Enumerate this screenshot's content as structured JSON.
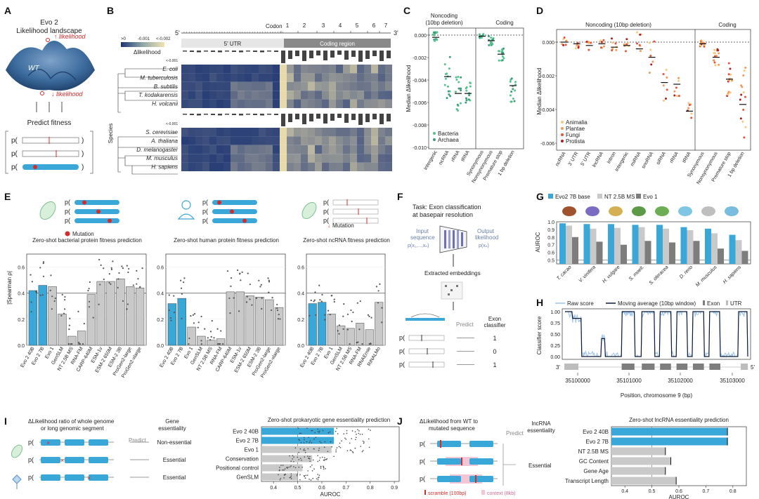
{
  "colors": {
    "blue": "#39a7d8",
    "gray": "#c9c9c9",
    "darkgray": "#7d7d7d",
    "red": "#d92a2a",
    "navy": "#1d3573",
    "cream": "#f2e3b0",
    "green": "#55c28b",
    "teal": "#3e9d7a",
    "animalia": "#f7c77a",
    "plantae": "#ef9a5a",
    "fungi": "#e0553b",
    "protista": "#b21d1d"
  },
  "panelA": {
    "letter": "A",
    "title_line1": "Evo 2",
    "title_line2": "Likelihood landscape",
    "high_label": "likelihood",
    "low_label": "likelihood",
    "wt_label": "WT",
    "predict_label": "Predict fitness",
    "p_labels": [
      "p(",
      "p(",
      "p("
    ],
    "close_paren": ")"
  },
  "panelB": {
    "letter": "B",
    "codon_label": "Codon",
    "five_prime": "5'",
    "three_prime": "3'",
    "codon_numbers": [
      "1",
      "2",
      "3",
      "4",
      "5",
      "6",
      "7"
    ],
    "utr_label": "5' UTR",
    "coding_label": "Coding region",
    "cbar_ticks": [
      ">0",
      "-0.001",
      "<-0.002"
    ],
    "cbar_label": "Δlikelihood",
    "small_tick": "<-0.001",
    "species_axis": "Species",
    "prok_species": [
      "E. coli",
      "M. tuberculosis",
      "B. subtilis",
      "T. kodakarensis",
      "H. volcanii"
    ],
    "euk_species": [
      "S. cerevisiae",
      "A. thaliana",
      "D. melanogaster",
      "M. musculus",
      "H. sapiens"
    ]
  },
  "panelC": {
    "letter": "C",
    "group1": "Noncoding",
    "group1b": "(10bp deletion)",
    "group2": "Coding",
    "ylabel": "Median Δlikelihood",
    "yticks": [
      "0.000",
      "-0.002",
      "-0.004",
      "-0.006",
      "-0.008",
      "-0.010"
    ],
    "categories": [
      "Intergenic",
      "ncRNA",
      "rRNA",
      "tRNA",
      "Synonymous",
      "Nonsynonymous",
      "Premature stop",
      "1 bp deletion"
    ],
    "legend": [
      "Bacteria",
      "Archaea"
    ]
  },
  "panelD": {
    "letter": "D",
    "group1": "Noncoding (10bp deletion)",
    "group2": "Coding",
    "ylabel": "Median Δlikelihood",
    "yticks": [
      "0.000",
      "-0.002",
      "-0.004",
      "-0.006"
    ],
    "categories": [
      "ncRNA",
      "3' UTR",
      "5' UTR",
      "lncRNA",
      "Intron",
      "Intergenic",
      "miRNA",
      "snoRNA",
      "siRNA",
      "rRNA",
      "tRNA",
      "Synonymous",
      "Nonsynonymous",
      "Premature stop",
      "1 bp deletion"
    ],
    "legend": [
      "Animalia",
      "Plantae",
      "Fungi",
      "Protista"
    ]
  },
  "panelE": {
    "letter": "E",
    "mutation_label": "Mutation",
    "p_label": "p(",
    "ylabel": "|Spearman ρ|",
    "yticks": [
      "0.0",
      "0.2",
      "0.4",
      "0.6"
    ]
  },
  "panelF": {
    "letter": "F",
    "task_line1": "Task: Exon classification",
    "task_line2": "at basepair resolution",
    "input_label1": "Input",
    "input_label2": "sequence",
    "input_label3": "p(x₁,...,xₙ)",
    "output_label1": "Output",
    "output_label2": "likelihood",
    "output_label3": "p(xₙ)",
    "embeddings_label": "Extracted embeddings",
    "predict_label": "Predict",
    "classifier_label1": "Exon",
    "classifier_label2": "classifier",
    "outputs": [
      "1",
      "0",
      "1"
    ],
    "p_label": "p("
  },
  "panelG": {
    "letter": "G",
    "ylabel": "AUROC",
    "yticks": [
      "1.0",
      "0.9",
      "0.8",
      "0.7",
      "0.6",
      "0.5"
    ]
  },
  "panelH": {
    "letter": "H",
    "legend": [
      "Raw score",
      "Moving average (10bp window)",
      "Exon",
      "UTR"
    ],
    "ylabel": "Classifier score",
    "yticks": [
      "1.00",
      "0.75",
      "0.50",
      "0.25",
      "0.00"
    ],
    "xlabel": "Position, chromosome 9 (bp)",
    "xticks": [
      "35100000",
      "35101000",
      "35102000",
      "35103000"
    ],
    "three_prime": "3'",
    "five_prime": "5'"
  },
  "panelI": {
    "letter": "I",
    "desc_line1": "ΔLikelihood ratio of whole genome",
    "desc_line2": "or long genomic segment",
    "predict_label": "Predict",
    "target_line1": "Gene",
    "target_line2": "essentiality",
    "outcomes": [
      "Non-essential",
      "Essential",
      "Essential"
    ],
    "p_label": "p("
  },
  "panelJ": {
    "letter": "J",
    "desc_line1": "ΔLikelihood from WT to",
    "desc_line2": "mutated sequence",
    "predict_label": "Predict",
    "target_line1": "lncRNA",
    "target_line2": "essentiality",
    "outcome": "Essential",
    "legend_scramble": "scramble (100bp)",
    "legend_context": "context (8kb)",
    "p_label": "p("
  },
  "chart_data": [
    {
      "id": "E1",
      "type": "bar",
      "title": "Zero-shot bacterial protein fitness prediction",
      "ylabel": "|Spearman ρ|",
      "ylim": [
        0,
        0.7
      ],
      "categories": [
        "Evo 2 40B",
        "Evo 2 7B",
        "Evo 1",
        "GenSLM",
        "NT 2.5B MS",
        "RNA-FM",
        "CARP-640M",
        "ESM-1v",
        "ESM-2 650M",
        "ESM-2 3B",
        "ProGen2-large",
        "ProGen2-xlarge"
      ],
      "values": [
        0.42,
        0.46,
        0.45,
        0.24,
        0.07,
        0.11,
        0.39,
        0.49,
        0.49,
        0.51,
        0.45,
        0.44
      ],
      "reference_line": 0.4
    },
    {
      "id": "E2",
      "type": "bar",
      "title": "Zero-shot human protein fitness prediction",
      "ylabel": "|Spearman ρ|",
      "ylim": [
        0,
        0.7
      ],
      "categories": [
        "Evo 2 40B",
        "Evo 2 7B",
        "Evo 1",
        "GenSLM",
        "NT 2.5B MS",
        "RNA-FM",
        "CARP-640M",
        "ESM-1v",
        "ESM-2 650M",
        "ESM-2 3B",
        "ProGen2-large",
        "ProGen2-xlarge"
      ],
      "values": [
        0.32,
        0.36,
        0.14,
        0.07,
        0.04,
        0.05,
        0.41,
        0.41,
        0.38,
        0.37,
        0.35,
        0.29
      ],
      "reference_line": 0.4
    },
    {
      "id": "E3",
      "type": "bar",
      "title": "Zero-shot ncRNA fitness prediction",
      "ylabel": "|Spearman ρ|",
      "ylim": [
        0,
        0.7
      ],
      "categories": [
        "Evo 2 40B",
        "Evo 2 7B",
        "Evo 1",
        "GenSLM",
        "NT 2.5B MS",
        "RNA-FM",
        "RNAErnie",
        "RiNALMo"
      ],
      "values": [
        0.32,
        0.33,
        0.24,
        0.15,
        0.13,
        0.17,
        0.12,
        0.33
      ],
      "reference_line": 0.4
    },
    {
      "id": "G",
      "type": "bar",
      "ylabel": "AUROC",
      "ylim": [
        0.45,
        1.0
      ],
      "categories": [
        "T. cacao",
        "V. vinifera",
        "H. vulgare",
        "S. moell.",
        "S. oleracea",
        "D. rerio",
        "M. musculus",
        "H. sapiens"
      ],
      "series": [
        {
          "name": "Evo2 7B base",
          "values": [
            0.98,
            0.97,
            0.97,
            0.96,
            0.96,
            0.93,
            0.91,
            0.83
          ]
        },
        {
          "name": "NT 2.5B MS",
          "values": [
            0.95,
            0.91,
            0.92,
            0.93,
            0.91,
            0.89,
            0.85,
            0.76
          ]
        },
        {
          "name": "Evo 1",
          "values": [
            0.8,
            0.74,
            0.7,
            0.75,
            0.73,
            0.75,
            0.65,
            0.62
          ]
        }
      ]
    },
    {
      "id": "I",
      "type": "bar",
      "title": "Zero-shot prokaryotic gene essentiality prediction",
      "xlabel": "AUROC",
      "xlim": [
        0.35,
        0.92
      ],
      "xticks": [
        "0.4",
        "0.5",
        "0.6",
        "0.7",
        "0.8",
        "0.9"
      ],
      "categories": [
        "Evo 2 40B",
        "Evo 2 7B",
        "Evo 1",
        "Conservation",
        "Positional control",
        "GenSLM"
      ],
      "values": [
        0.65,
        0.65,
        0.64,
        0.56,
        0.52,
        0.5
      ]
    },
    {
      "id": "J",
      "type": "bar",
      "title": "Zero-shot lncRNA essentiality prediction",
      "xlabel": "AUROC",
      "xlim": [
        0.35,
        0.85
      ],
      "xticks": [
        "0.4",
        "0.5",
        "0.6",
        "0.7",
        "0.8"
      ],
      "categories": [
        "Evo 2 40B",
        "Evo 2 7B",
        "NT 2.5B MS",
        "GC Content",
        "Gene Age",
        "Transcript Length"
      ],
      "values": [
        0.78,
        0.78,
        0.55,
        0.57,
        0.55,
        0.59
      ]
    }
  ]
}
